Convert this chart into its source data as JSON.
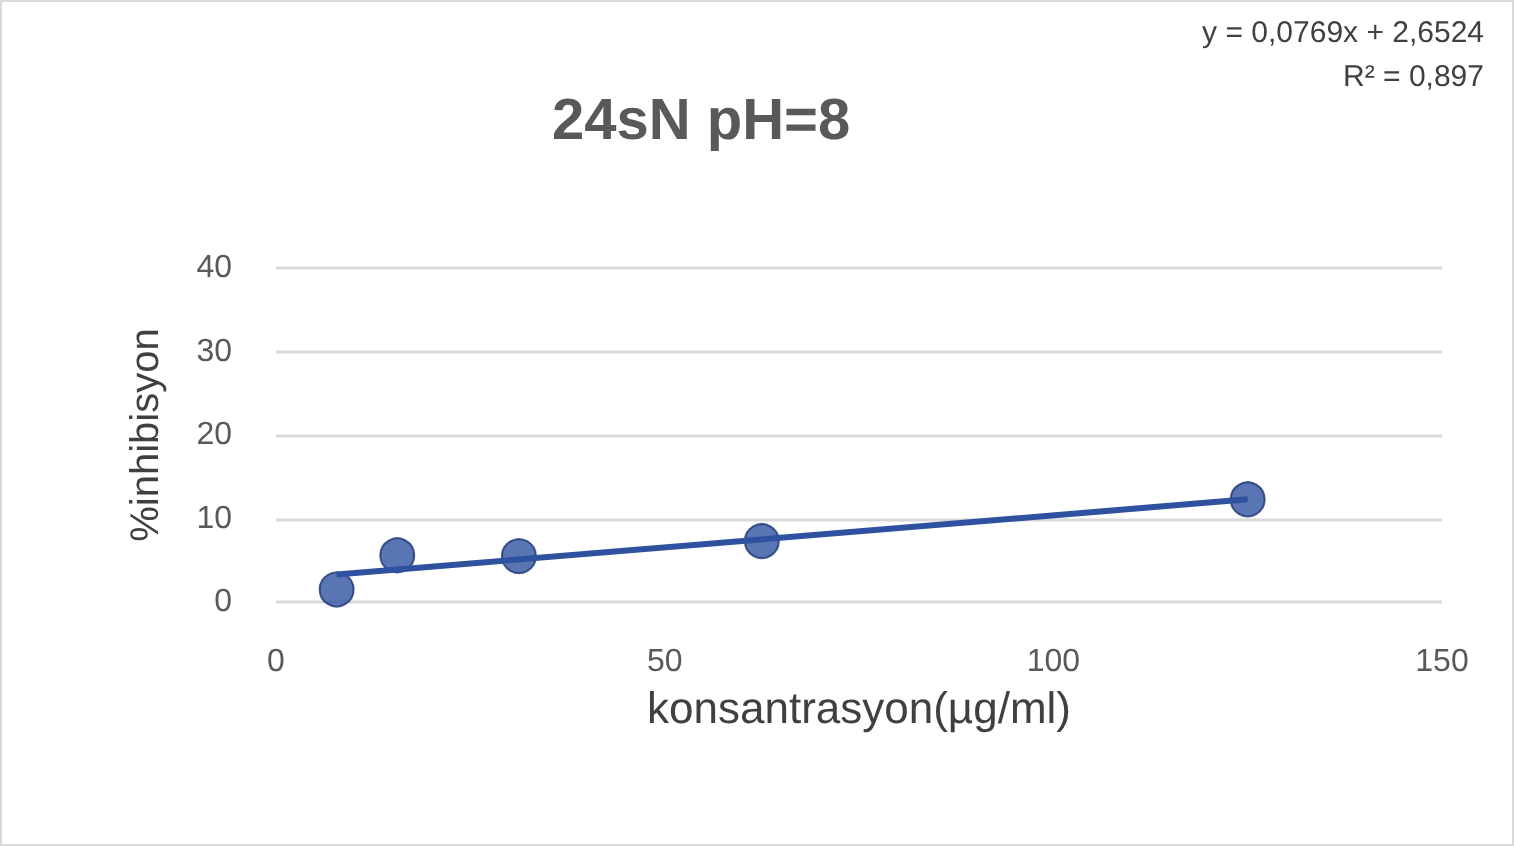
{
  "chart_data": {
    "type": "scatter",
    "title": "24sN pH=8",
    "xlabel": "konsantrasyon(µg/ml)",
    "ylabel": "%inhibisyon",
    "annotations": [
      "y = 0,0769x + 2,6524",
      "R² = 0,897"
    ],
    "series": [
      {
        "color": "#2f52a0",
        "x": [
          7.8,
          15.6,
          31.25,
          62.5,
          125
        ],
        "values": [
          1.5,
          5.6,
          5.5,
          7.3,
          12.3
        ],
        "marker": "circle"
      },
      {
        "type": "line",
        "color": "#2f52a0",
        "x": [
          7.8,
          125
        ],
        "values": [
          3.3,
          12.3
        ],
        "marker": "none",
        "line_style": "solid"
      }
    ],
    "xlim": [
      0,
      150
    ],
    "xticks": [
      0,
      50,
      100,
      150
    ],
    "ylim": [
      0,
      40
    ],
    "yticks": [
      0,
      10,
      20,
      30,
      40
    ],
    "grid": "y"
  }
}
